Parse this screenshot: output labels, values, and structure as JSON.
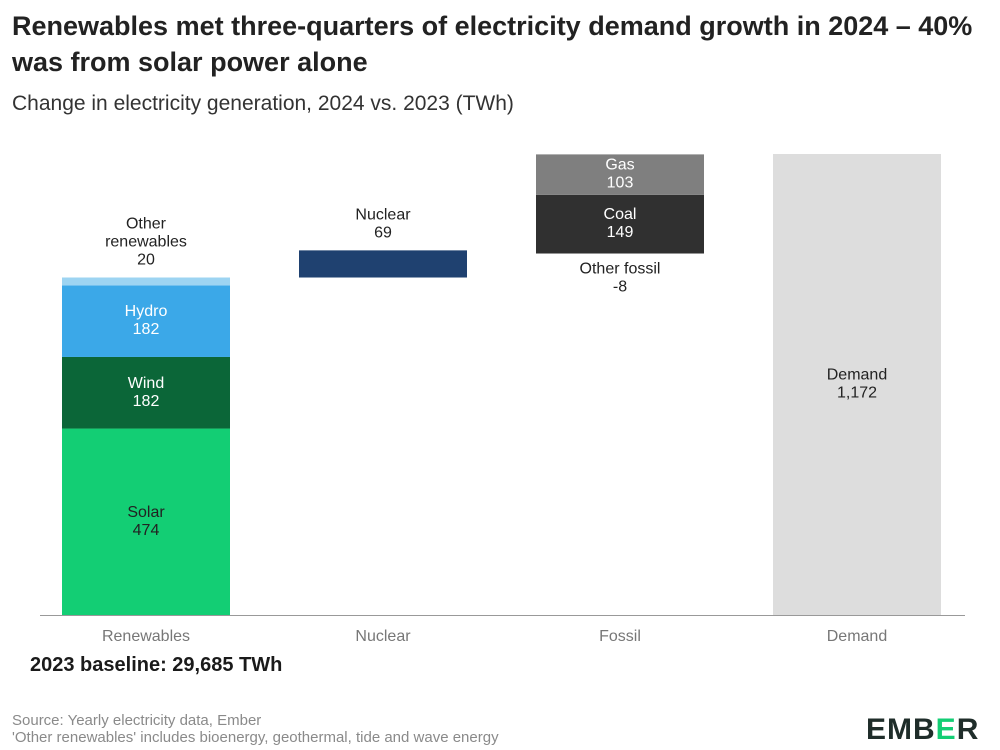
{
  "title": "Renewables met three-quarters of electricity demand growth in 2024 – 40% was from solar power alone",
  "subtitle": "Change in electricity generation, 2024 vs. 2023 (TWh)",
  "baseline_note": "2023 baseline: 29,685 TWh",
  "source_lines": [
    "Source: Yearly electricity data, Ember",
    "'Other renewables' includes bioenergy, geothermal, tide and wave energy"
  ],
  "logo": {
    "part1": "EMB",
    "part2": "E",
    "part3": "R"
  },
  "colors": {
    "solar": "#13ce74",
    "wind": "#0b6638",
    "hydro": "#3ba8e8",
    "other_renewables": "#9dd4f2",
    "nuclear": "#1f4170",
    "coal": "#303030",
    "gas": "#7f7f7f",
    "demand": "#dddddd",
    "axis": "#999999",
    "category_label": "#777777"
  },
  "chart_data": {
    "type": "waterfall",
    "unit": "TWh",
    "ylim": [
      0,
      1172
    ],
    "categories": [
      "Renewables",
      "Nuclear",
      "Fossil",
      "Demand"
    ],
    "segments": [
      {
        "category": "Renewables",
        "name": "Solar",
        "label_lines": [
          "Solar"
        ],
        "value": 474,
        "value_label": "474",
        "color_key": "solar",
        "label_pos": "inside",
        "label_color": "#222222"
      },
      {
        "category": "Renewables",
        "name": "Wind",
        "label_lines": [
          "Wind"
        ],
        "value": 182,
        "value_label": "182",
        "color_key": "wind",
        "label_pos": "inside",
        "label_color": "#ffffff"
      },
      {
        "category": "Renewables",
        "name": "Hydro",
        "label_lines": [
          "Hydro"
        ],
        "value": 182,
        "value_label": "182",
        "color_key": "hydro",
        "label_pos": "inside",
        "label_color": "#ffffff"
      },
      {
        "category": "Renewables",
        "name": "Other renewables",
        "label_lines": [
          "Other",
          "renewables"
        ],
        "value": 20,
        "value_label": "20",
        "color_key": "other_renewables",
        "label_pos": "above",
        "label_color": "#222222"
      },
      {
        "category": "Nuclear",
        "name": "Nuclear",
        "label_lines": [
          "Nuclear"
        ],
        "value": 69,
        "value_label": "69",
        "color_key": "nuclear",
        "label_pos": "above",
        "label_color": "#222222"
      },
      {
        "category": "Fossil",
        "name": "Other fossil",
        "label_lines": [
          "Other fossil"
        ],
        "value": -8,
        "value_label": "-8",
        "color_key": "",
        "label_pos": "below",
        "label_color": "#222222"
      },
      {
        "category": "Fossil",
        "name": "Coal",
        "label_lines": [
          "Coal"
        ],
        "value": 149,
        "value_label": "149",
        "color_key": "coal",
        "label_pos": "inside",
        "label_color": "#ffffff"
      },
      {
        "category": "Fossil",
        "name": "Gas",
        "label_lines": [
          "Gas"
        ],
        "value": 103,
        "value_label": "103",
        "color_key": "gas",
        "label_pos": "inside",
        "label_color": "#ffffff"
      },
      {
        "category": "Demand",
        "name": "Demand",
        "label_lines": [
          "Demand"
        ],
        "value": 1172,
        "value_label": "1,172",
        "color_key": "demand",
        "label_pos": "inside",
        "label_color": "#222222",
        "total": true
      }
    ]
  }
}
